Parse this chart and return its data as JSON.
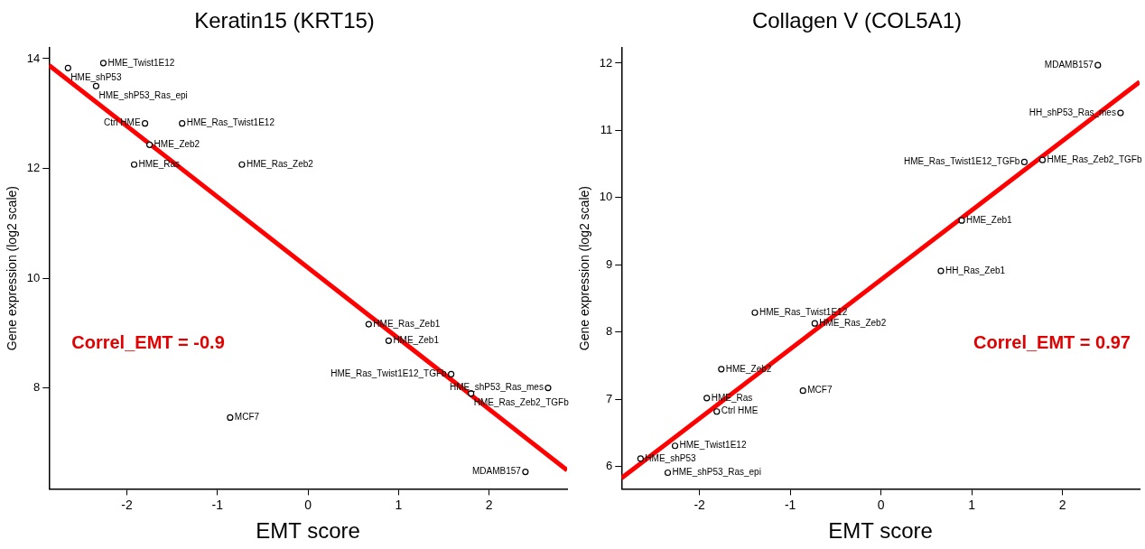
{
  "chart_data": [
    {
      "type": "scatter",
      "title": "Keratin15 (KRT15)",
      "xlabel": "EMT score",
      "ylabel": "Gene expression (log2 scale)",
      "xlim": [
        -2.86,
        2.86
      ],
      "ylim": [
        6.16,
        14.2
      ],
      "xticks": [
        -2,
        -1,
        0,
        1,
        2
      ],
      "yticks": [
        8,
        10,
        12,
        14
      ],
      "marker": "circle",
      "series": [
        {
          "type": "scatter",
          "color": "#000000",
          "x": [
            -2.65,
            -2.26,
            -2.34,
            -1.8,
            -1.39,
            -1.75,
            -1.92,
            -0.73,
            0.67,
            0.89,
            1.58,
            2.65,
            1.8,
            -0.86,
            2.4
          ],
          "values": [
            13.83,
            13.92,
            13.5,
            12.82,
            12.82,
            12.43,
            12.07,
            12.07,
            9.16,
            8.86,
            8.25,
            8.0,
            7.9,
            7.46,
            6.47
          ]
        },
        {
          "type": "line",
          "color": "#ff0000",
          "marker": "none",
          "x": [
            -2.86,
            2.86
          ],
          "values": [
            13.88,
            6.5
          ]
        }
      ],
      "annotations": [
        {
          "text": "HME_shP53",
          "x": -2.65,
          "y": 13.83
        },
        {
          "text": "HME_Twist1E12",
          "x": -2.26,
          "y": 13.92
        },
        {
          "text": "HME_shP53_Ras_epi",
          "x": -2.34,
          "y": 13.5
        },
        {
          "text": "Ctrl HME",
          "x": -1.8,
          "y": 12.82
        },
        {
          "text": "HME_Ras_Twist1E12",
          "x": -1.39,
          "y": 12.82
        },
        {
          "text": "HME_Zeb2",
          "x": -1.75,
          "y": 12.43
        },
        {
          "text": "HME_Ras",
          "x": -1.92,
          "y": 12.07
        },
        {
          "text": "HME_Ras_Zeb2",
          "x": -0.73,
          "y": 12.07
        },
        {
          "text": "HME_Ras_Zeb1",
          "x": 0.67,
          "y": 9.16
        },
        {
          "text": "HME_Zeb1",
          "x": 0.89,
          "y": 8.86
        },
        {
          "text": "HME_Ras_Twist1E12_TGFb",
          "x": 1.58,
          "y": 8.25
        },
        {
          "text": "HME_shP53_Ras_mes",
          "x": 2.65,
          "y": 8.0
        },
        {
          "text": "HME_Ras_Zeb2_TGFb",
          "x": 1.8,
          "y": 7.9
        },
        {
          "text": "MCF7",
          "x": -0.86,
          "y": 7.46
        },
        {
          "text": "MDAMB157",
          "x": 2.4,
          "y": 6.47
        },
        "Correl_EMT = -0.9"
      ]
    },
    {
      "type": "scatter",
      "title": "Collagen V (COL5A1)",
      "xlabel": "EMT score",
      "ylabel": "Gene expression (log2 scale)",
      "xlim": [
        -2.86,
        2.85
      ],
      "ylim": [
        5.67,
        12.23
      ],
      "xticks": [
        -2,
        -1,
        0,
        1,
        2
      ],
      "yticks": [
        6,
        7,
        8,
        9,
        10,
        11,
        12
      ],
      "marker": "circle",
      "series": [
        {
          "type": "scatter",
          "color": "#000000",
          "x": [
            2.39,
            2.64,
            1.78,
            1.58,
            0.89,
            0.66,
            -1.39,
            -0.73,
            -1.76,
            -0.86,
            -1.92,
            -1.81,
            -2.27,
            -2.65,
            -2.35
          ],
          "values": [
            11.97,
            11.26,
            10.56,
            10.53,
            9.66,
            8.91,
            8.29,
            8.13,
            7.45,
            7.13,
            7.02,
            6.82,
            6.31,
            6.12,
            5.91
          ]
        },
        {
          "type": "line",
          "color": "#ff0000",
          "marker": "none",
          "x": [
            -2.86,
            2.85
          ],
          "values": [
            5.83,
            11.72
          ]
        }
      ],
      "annotations": [
        {
          "text": "MDAMB157",
          "x": 2.39,
          "y": 11.97
        },
        {
          "text": "HH_shP53_Ras_mes",
          "x": 2.64,
          "y": 11.26
        },
        {
          "text": "HME_Ras_Zeb2_TGFb",
          "x": 1.78,
          "y": 10.56
        },
        {
          "text": "HME_Ras_Twist1E12_TGFb",
          "x": 1.58,
          "y": 10.53
        },
        {
          "text": "HME_Zeb1",
          "x": 0.89,
          "y": 9.66
        },
        {
          "text": "HH_Ras_Zeb1",
          "x": 0.66,
          "y": 8.91
        },
        {
          "text": "HME_Ras_Twist1E12",
          "x": -1.39,
          "y": 8.29
        },
        {
          "text": "HME_Ras_Zeb2",
          "x": -0.73,
          "y": 8.13
        },
        {
          "text": "HME_Zeb2",
          "x": -1.76,
          "y": 7.45
        },
        {
          "text": "MCF7",
          "x": -0.86,
          "y": 7.13
        },
        {
          "text": "HME_Ras",
          "x": -1.92,
          "y": 7.02
        },
        {
          "text": "Ctrl HME",
          "x": -1.81,
          "y": 6.82
        },
        {
          "text": "HME_Twist1E12",
          "x": -2.27,
          "y": 6.31
        },
        {
          "text": "HME_shP53",
          "x": -2.65,
          "y": 6.12
        },
        {
          "text": "HME_shP53_Ras_epi",
          "x": -2.35,
          "y": 5.91
        },
        "Correl_EMT = 0.97"
      ]
    }
  ]
}
